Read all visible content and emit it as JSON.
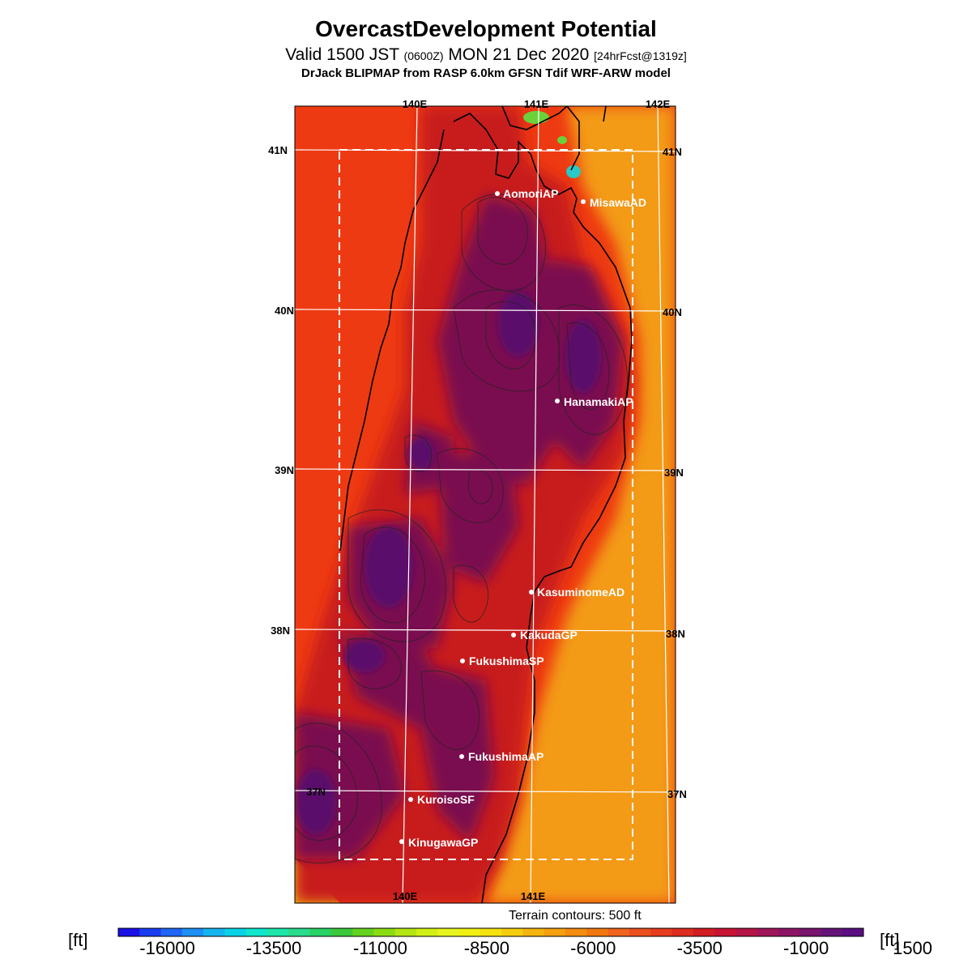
{
  "header": {
    "title": "OvercastDevelopment Potential",
    "valid_prefix": "Valid 1500 JST",
    "valid_z": "(0600Z)",
    "valid_date": "MON 21 Dec 2020",
    "forecast_tag": "[24hrFcst@1319z]",
    "credit": "DrJack BLIPMAP from RASP 6.0km GFSN Tdif WRF-ARW model"
  },
  "map": {
    "lon_top_labels": [
      "140E",
      "141E",
      "142E"
    ],
    "lon_bottom_labels": [
      "140E",
      "141E"
    ],
    "lat_labels": [
      "41N",
      "40N",
      "39N",
      "38N",
      "37N"
    ],
    "colors": {
      "sea": "#ee3a12",
      "inland": "#c81e1e",
      "high": "#7a1050",
      "peak": "#5a0e6a",
      "east_coast": "#f39a12",
      "blue_spot": "#2ac8c8",
      "green_spot": "#6bd13a"
    },
    "stations": [
      {
        "name": "AomoriAP"
      },
      {
        "name": "MisawaAD"
      },
      {
        "name": "HanamakiAP"
      },
      {
        "name": "KasuminomeAD"
      },
      {
        "name": "KakudaGP"
      },
      {
        "name": "FukushimaSP"
      },
      {
        "name": "FukushimaAP"
      },
      {
        "name": "KuroisoSF"
      },
      {
        "name": "KinugawaGP"
      }
    ],
    "terrain_note": "Terrain contours: 500 ft"
  },
  "colorbar": {
    "unit": "[ft]",
    "labels": [
      "-16000",
      "-13500",
      "-11000",
      "-8500",
      "-6000",
      "-3500",
      "-1000",
      "1500"
    ],
    "colors": [
      "#1a0fe6",
      "#1a3cf0",
      "#1e66f5",
      "#1e8ff5",
      "#14b4f0",
      "#0ad2e6",
      "#10e6cc",
      "#1ee6aa",
      "#28dc8c",
      "#28d264",
      "#3cc83c",
      "#64d21e",
      "#8cdc14",
      "#b4e614",
      "#d2f014",
      "#e6f51e",
      "#f0f014",
      "#f5e10f",
      "#f5cd0f",
      "#f5b40f",
      "#f5a00f",
      "#f58c0f",
      "#f0780f",
      "#f0641e",
      "#eb501e",
      "#e63c1e",
      "#dc2d1e",
      "#d21e23",
      "#c81432",
      "#b41446",
      "#a0145a",
      "#8c1464",
      "#78146e",
      "#641478",
      "#5a0e82"
    ]
  }
}
